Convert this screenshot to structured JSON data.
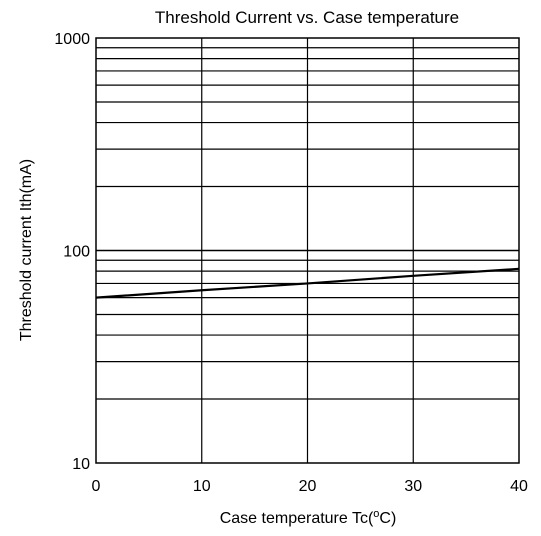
{
  "chart_data": {
    "type": "line",
    "title": "Threshold Current vs. Case temperature",
    "xlabel": "Case temperature Tc(",
    "xlabel_degree": "o",
    "xlabel_suffix": "C)",
    "ylabel": "Threshold current Ith(mA)",
    "xlim": [
      0,
      40
    ],
    "ylim": [
      10,
      1000
    ],
    "yscale": "log",
    "grid": true,
    "legend": "none",
    "x_ticks": [
      "0",
      "10",
      "20",
      "30",
      "40"
    ],
    "y_ticks": [
      "10",
      "100",
      "1000"
    ],
    "series": [
      {
        "x": [
          0,
          10,
          20,
          30,
          40
        ],
        "y": [
          60,
          65,
          70,
          76,
          82
        ]
      }
    ],
    "colors": {
      "line": "#000000",
      "grid": "#000000"
    }
  }
}
